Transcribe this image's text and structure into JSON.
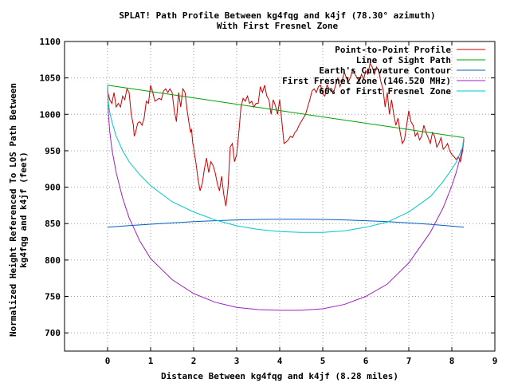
{
  "chart_data": {
    "type": "line",
    "title": "SPLAT! Path Profile Between kg4fqg and k4jf (78.30° azimuth)",
    "subtitle": "With First Fresnel Zone",
    "xlabel": "Distance Between kg4fqg and k4jf (8.28 miles)",
    "ylabel_lines": [
      "Normalized Height Referenced To LOS Path Between",
      "kg4fqg and k4jf (feet)"
    ],
    "xlim": [
      -1,
      9
    ],
    "ylim": [
      675,
      1100
    ],
    "x_ticks": [
      0,
      1,
      2,
      3,
      4,
      5,
      6,
      7,
      8,
      9
    ],
    "y_ticks": [
      700,
      750,
      800,
      850,
      900,
      950,
      1000,
      1050,
      1100
    ],
    "grid": true,
    "legend_position": "top-right",
    "series": [
      {
        "name": "Point-to-Point Profile",
        "color": "#cc0000",
        "points": [
          [
            0,
            1032
          ],
          [
            0.05,
            1020
          ],
          [
            0.1,
            1015
          ],
          [
            0.15,
            1030
          ],
          [
            0.2,
            1010
          ],
          [
            0.25,
            1015
          ],
          [
            0.3,
            1010
          ],
          [
            0.35,
            1025
          ],
          [
            0.4,
            1020
          ],
          [
            0.45,
            1035
          ],
          [
            0.5,
            1030
          ],
          [
            0.55,
            1000
          ],
          [
            0.6,
            985
          ],
          [
            0.62,
            970
          ],
          [
            0.65,
            975
          ],
          [
            0.7,
            988
          ],
          [
            0.75,
            990
          ],
          [
            0.8,
            985
          ],
          [
            0.85,
            995
          ],
          [
            0.9,
            1018
          ],
          [
            0.95,
            1015
          ],
          [
            1.0,
            1040
          ],
          [
            1.05,
            1030
          ],
          [
            1.1,
            1018
          ],
          [
            1.15,
            1020
          ],
          [
            1.2,
            1022
          ],
          [
            1.25,
            1020
          ],
          [
            1.3,
            1032
          ],
          [
            1.35,
            1035
          ],
          [
            1.4,
            1030
          ],
          [
            1.45,
            1035
          ],
          [
            1.5,
            1030
          ],
          [
            1.55,
            1005
          ],
          [
            1.6,
            990
          ],
          [
            1.65,
            1030
          ],
          [
            1.7,
            1010
          ],
          [
            1.75,
            1035
          ],
          [
            1.8,
            1030
          ],
          [
            1.85,
            1005
          ],
          [
            1.9,
            985
          ],
          [
            1.93,
            975
          ],
          [
            1.95,
            980
          ],
          [
            1.98,
            960
          ],
          [
            2.0,
            955
          ],
          [
            2.02,
            945
          ],
          [
            2.05,
            935
          ],
          [
            2.1,
            912
          ],
          [
            2.15,
            895
          ],
          [
            2.2,
            905
          ],
          [
            2.25,
            925
          ],
          [
            2.3,
            940
          ],
          [
            2.35,
            920
          ],
          [
            2.4,
            935
          ],
          [
            2.45,
            930
          ],
          [
            2.5,
            920
          ],
          [
            2.55,
            905
          ],
          [
            2.6,
            895
          ],
          [
            2.65,
            915
          ],
          [
            2.7,
            890
          ],
          [
            2.75,
            874
          ],
          [
            2.8,
            900
          ],
          [
            2.85,
            955
          ],
          [
            2.9,
            960
          ],
          [
            2.95,
            935
          ],
          [
            3.0,
            945
          ],
          [
            3.05,
            975
          ],
          [
            3.1,
            1010
          ],
          [
            3.15,
            1022
          ],
          [
            3.2,
            1018
          ],
          [
            3.25,
            1025
          ],
          [
            3.3,
            1015
          ],
          [
            3.35,
            1018
          ],
          [
            3.4,
            1010
          ],
          [
            3.45,
            1015
          ],
          [
            3.5,
            1015
          ],
          [
            3.55,
            1038
          ],
          [
            3.6,
            1030
          ],
          [
            3.65,
            1040
          ],
          [
            3.7,
            1025
          ],
          [
            3.75,
            1020
          ],
          [
            3.8,
            1000
          ],
          [
            3.85,
            1020
          ],
          [
            3.9,
            1012
          ],
          [
            3.95,
            1000
          ],
          [
            4.0,
            1020
          ],
          [
            4.05,
            990
          ],
          [
            4.1,
            960
          ],
          [
            4.15,
            962
          ],
          [
            4.2,
            965
          ],
          [
            4.25,
            970
          ],
          [
            4.3,
            968
          ],
          [
            4.35,
            975
          ],
          [
            4.4,
            978
          ],
          [
            4.45,
            985
          ],
          [
            4.5,
            990
          ],
          [
            4.55,
            995
          ],
          [
            4.6,
            1000
          ],
          [
            4.65,
            1010
          ],
          [
            4.7,
            1020
          ],
          [
            4.75,
            1032
          ],
          [
            4.8,
            1035
          ],
          [
            4.85,
            1030
          ],
          [
            4.9,
            1038
          ],
          [
            4.95,
            1040
          ],
          [
            5.0,
            1028
          ],
          [
            5.05,
            1025
          ],
          [
            5.1,
            1040
          ],
          [
            5.15,
            1035
          ],
          [
            5.2,
            1032
          ],
          [
            5.25,
            1030
          ],
          [
            5.3,
            1040
          ],
          [
            5.35,
            1050
          ],
          [
            5.4,
            1038
          ],
          [
            5.45,
            1045
          ],
          [
            5.5,
            1058
          ],
          [
            5.55,
            1050
          ],
          [
            5.6,
            1045
          ],
          [
            5.65,
            1052
          ],
          [
            5.7,
            1062
          ],
          [
            5.75,
            1055
          ],
          [
            5.8,
            1050
          ],
          [
            5.85,
            1045
          ],
          [
            5.9,
            1055
          ],
          [
            5.95,
            1048
          ],
          [
            6.0,
            1060
          ],
          [
            6.05,
            1055
          ],
          [
            6.1,
            1070
          ],
          [
            6.15,
            1065
          ],
          [
            6.2,
            1055
          ],
          [
            6.25,
            1065
          ],
          [
            6.3,
            1060
          ],
          [
            6.35,
            1045
          ],
          [
            6.4,
            1035
          ],
          [
            6.45,
            1010
          ],
          [
            6.5,
            1030
          ],
          [
            6.55,
            1000
          ],
          [
            6.6,
            1020
          ],
          [
            6.65,
            1000
          ],
          [
            6.7,
            985
          ],
          [
            6.75,
            995
          ],
          [
            6.8,
            975
          ],
          [
            6.85,
            960
          ],
          [
            6.9,
            965
          ],
          [
            6.95,
            985
          ],
          [
            7.0,
            1005
          ],
          [
            7.05,
            990
          ],
          [
            7.1,
            985
          ],
          [
            7.15,
            970
          ],
          [
            7.2,
            975
          ],
          [
            7.25,
            965
          ],
          [
            7.3,
            970
          ],
          [
            7.35,
            985
          ],
          [
            7.4,
            975
          ],
          [
            7.45,
            968
          ],
          [
            7.5,
            960
          ],
          [
            7.55,
            975
          ],
          [
            7.6,
            970
          ],
          [
            7.65,
            955
          ],
          [
            7.7,
            960
          ],
          [
            7.75,
            968
          ],
          [
            7.8,
            952
          ],
          [
            7.85,
            955
          ],
          [
            7.9,
            960
          ],
          [
            7.95,
            950
          ],
          [
            8.0,
            945
          ],
          [
            8.05,
            942
          ],
          [
            8.1,
            938
          ],
          [
            8.15,
            942
          ],
          [
            8.2,
            935
          ],
          [
            8.25,
            950
          ],
          [
            8.28,
            965
          ]
        ]
      },
      {
        "name": "Line of Sight Path",
        "color": "#00a000",
        "points": [
          [
            0,
            1040
          ],
          [
            8.28,
            968
          ]
        ]
      },
      {
        "name": "Earth's Curvature Contour",
        "color": "#0060c0",
        "points": [
          [
            0,
            845
          ],
          [
            0.5,
            847.2
          ],
          [
            1,
            849.2
          ],
          [
            1.5,
            851
          ],
          [
            2,
            852.7
          ],
          [
            2.5,
            854
          ],
          [
            3,
            855
          ],
          [
            3.5,
            855.7
          ],
          [
            4,
            856
          ],
          [
            4.5,
            856
          ],
          [
            5,
            855.7
          ],
          [
            5.5,
            855
          ],
          [
            6,
            854
          ],
          [
            6.5,
            852.7
          ],
          [
            7,
            851
          ],
          [
            7.5,
            849
          ],
          [
            8,
            846.5
          ],
          [
            8.28,
            845
          ]
        ]
      },
      {
        "name": "First Fresnel Zone (146.520 MHz)",
        "color": "#a020c0",
        "points": [
          [
            0,
            1040
          ],
          [
            0.02,
            1000
          ],
          [
            0.05,
            977
          ],
          [
            0.1,
            952
          ],
          [
            0.2,
            920
          ],
          [
            0.35,
            885
          ],
          [
            0.5,
            858
          ],
          [
            0.75,
            826
          ],
          [
            1,
            802
          ],
          [
            1.5,
            773
          ],
          [
            2,
            754
          ],
          [
            2.5,
            742
          ],
          [
            3,
            735
          ],
          [
            3.5,
            732
          ],
          [
            4,
            731
          ],
          [
            4.5,
            731
          ],
          [
            5,
            733
          ],
          [
            5.5,
            739
          ],
          [
            6,
            750
          ],
          [
            6.5,
            767
          ],
          [
            7,
            796
          ],
          [
            7.5,
            838
          ],
          [
            7.8,
            872
          ],
          [
            8.0,
            902
          ],
          [
            8.1,
            920
          ],
          [
            8.2,
            942
          ],
          [
            8.25,
            953
          ],
          [
            8.28,
            968
          ]
        ]
      },
      {
        "name": "60% of First Fresnel Zone",
        "color": "#00c8c8",
        "points": [
          [
            0,
            1040
          ],
          [
            0.02,
            1015
          ],
          [
            0.05,
            1003
          ],
          [
            0.1,
            990
          ],
          [
            0.2,
            970
          ],
          [
            0.35,
            950
          ],
          [
            0.5,
            935
          ],
          [
            0.75,
            917
          ],
          [
            1,
            902
          ],
          [
            1.5,
            880
          ],
          [
            2,
            866
          ],
          [
            2.5,
            855
          ],
          [
            3,
            847
          ],
          [
            3.5,
            842
          ],
          [
            4,
            839
          ],
          [
            4.5,
            838
          ],
          [
            5,
            838
          ],
          [
            5.5,
            840
          ],
          [
            6,
            845
          ],
          [
            6.5,
            852
          ],
          [
            7,
            866
          ],
          [
            7.5,
            887
          ],
          [
            7.8,
            908
          ],
          [
            8.0,
            925
          ],
          [
            8.1,
            934
          ],
          [
            8.2,
            948
          ],
          [
            8.25,
            955
          ],
          [
            8.28,
            968
          ]
        ]
      }
    ]
  }
}
